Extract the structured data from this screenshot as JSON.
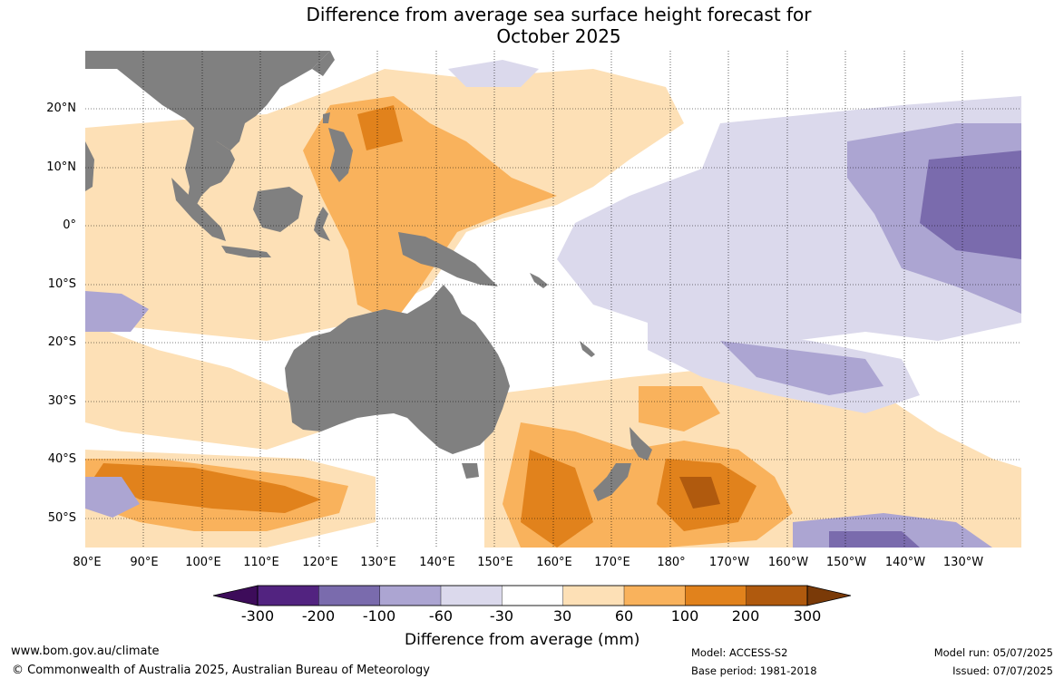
{
  "title": {
    "line1": "Difference from average sea surface height forecast for",
    "line2": "October 2025"
  },
  "map": {
    "lat_labels": [
      "20°N",
      "10°N",
      "0°",
      "10°S",
      "20°S",
      "30°S",
      "40°S",
      "50°S"
    ],
    "lon_labels": [
      "80°E",
      "90°E",
      "100°E",
      "110°E",
      "120°E",
      "130°E",
      "140°E",
      "150°E",
      "160°E",
      "170°E",
      "180°",
      "170°W",
      "160°W",
      "150°W",
      "140°W",
      "130°W"
    ],
    "land_color": "#808080"
  },
  "legend": {
    "title": "Difference from average (mm)",
    "ticks": [
      "-300",
      "-200",
      "-100",
      "-60",
      "-30",
      "30",
      "60",
      "100",
      "200",
      "300"
    ],
    "colors": [
      "#3d0c5a",
      "#522380",
      "#7a6bad",
      "#aca5d2",
      "#dbd9ec",
      "#ffffff",
      "#fde0b6",
      "#f9b25c",
      "#e1821c",
      "#b05a0e",
      "#7a3a08"
    ]
  },
  "footer": {
    "website": "www.bom.gov.au/climate",
    "copyright": "© Commonwealth of Australia 2025, Australian Bureau of Meteorology",
    "model": "Model: ACCESS-S2",
    "base_period": "Base period: 1981-2018",
    "model_run": "Model run: 05/07/2025",
    "issued": "Issued: 07/07/2025"
  }
}
